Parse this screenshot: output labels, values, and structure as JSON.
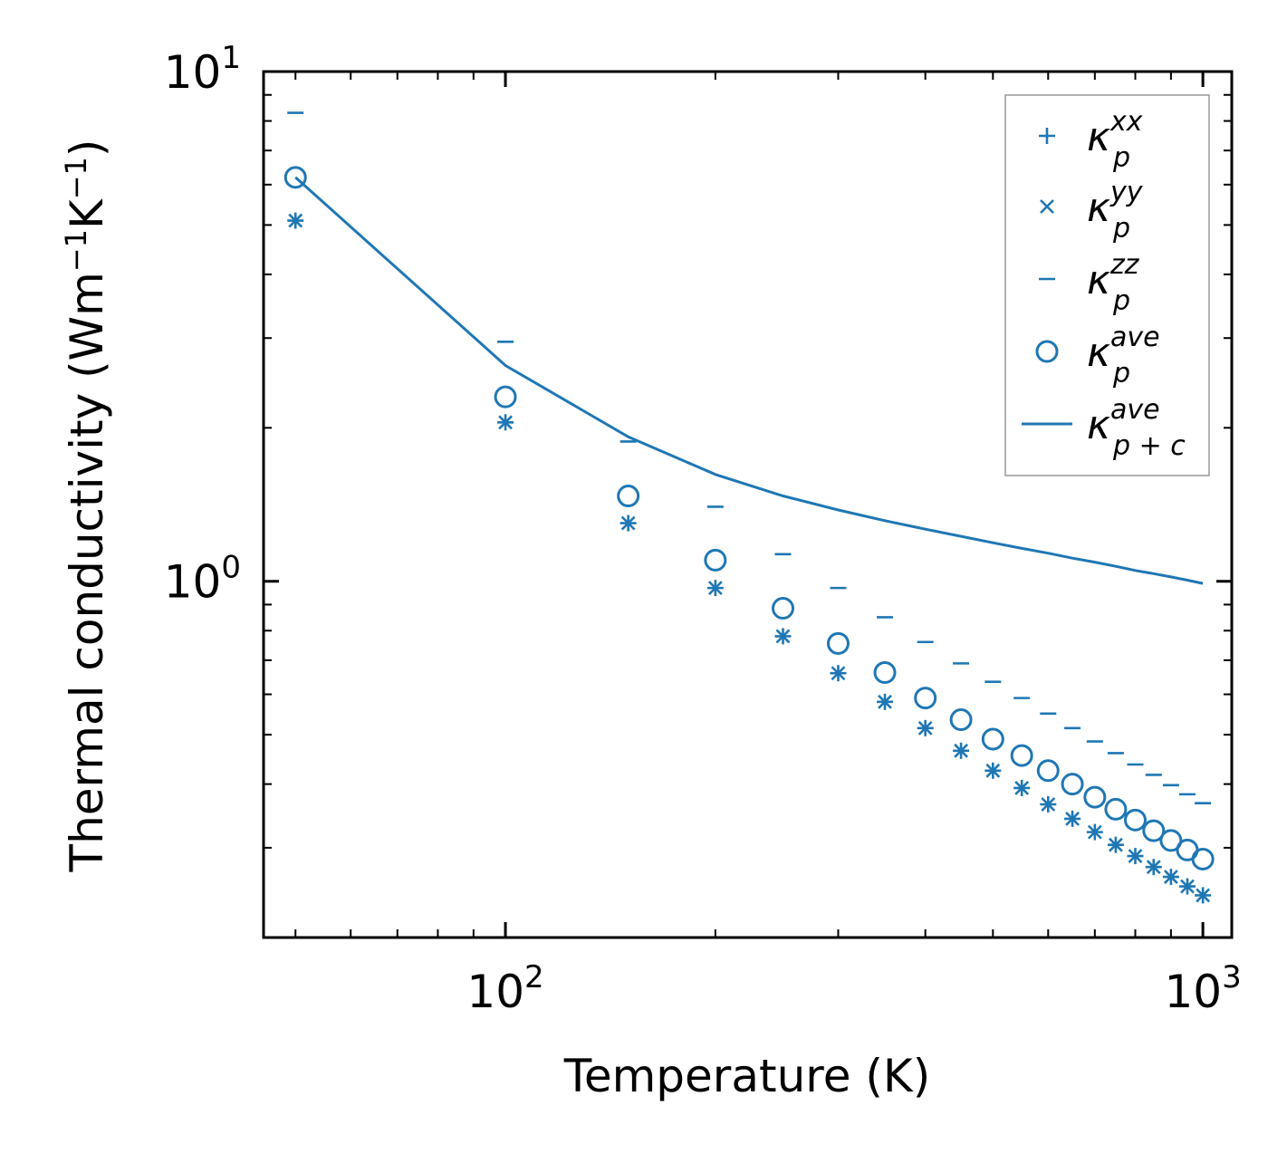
{
  "chart_data": {
    "type": "scatter",
    "xscale": "log",
    "yscale": "log",
    "xlim": [
      45,
      1100
    ],
    "ylim": [
      0.2,
      10
    ],
    "xlabel": "Temperature (K)",
    "ylabel": {
      "base": "Thermal conductivity (Wm",
      "exp1": "−1",
      "mid": "K",
      "exp2": "−1",
      "end": ")"
    },
    "x_ticks": [
      {
        "value": 100,
        "base": "10",
        "exp": "2"
      },
      {
        "value": 1000,
        "base": "10",
        "exp": "3"
      }
    ],
    "y_ticks": [
      {
        "value": 1,
        "base": "10",
        "exp": "0"
      },
      {
        "value": 10,
        "base": "10",
        "exp": "1"
      }
    ],
    "legend_position": "top-right",
    "color": "#1f77b4",
    "x": [
      50,
      100,
      150,
      200,
      250,
      300,
      350,
      400,
      450,
      500,
      550,
      600,
      650,
      700,
      750,
      800,
      850,
      900,
      950,
      1000
    ],
    "series": [
      {
        "name": "kp_xx",
        "label": {
          "base": "κ",
          "sub": "p",
          "sup": "xx"
        },
        "marker": "plus",
        "values": [
          5.1,
          2.05,
          1.3,
          0.97,
          0.78,
          0.66,
          0.58,
          0.515,
          0.465,
          0.425,
          0.393,
          0.365,
          0.342,
          0.322,
          0.304,
          0.289,
          0.275,
          0.263,
          0.252,
          0.242
        ]
      },
      {
        "name": "kp_yy",
        "label": {
          "base": "κ",
          "sub": "p",
          "sup": "yy"
        },
        "marker": "x",
        "values": [
          5.1,
          2.05,
          1.3,
          0.97,
          0.78,
          0.66,
          0.58,
          0.515,
          0.465,
          0.425,
          0.393,
          0.365,
          0.342,
          0.322,
          0.304,
          0.289,
          0.275,
          0.263,
          0.252,
          0.242
        ]
      },
      {
        "name": "kp_zz",
        "label": {
          "base": "κ",
          "sub": "p",
          "sup": "zz"
        },
        "marker": "hline",
        "values": [
          8.3,
          2.95,
          1.88,
          1.4,
          1.13,
          0.97,
          0.85,
          0.76,
          0.69,
          0.635,
          0.59,
          0.55,
          0.515,
          0.485,
          0.46,
          0.437,
          0.417,
          0.398,
          0.382,
          0.367
        ]
      },
      {
        "name": "kp_ave",
        "label": {
          "base": "κ",
          "sub": "p",
          "sup": "ave"
        },
        "marker": "circle",
        "values": [
          6.2,
          2.3,
          1.47,
          1.1,
          0.885,
          0.755,
          0.662,
          0.59,
          0.535,
          0.49,
          0.455,
          0.425,
          0.4,
          0.377,
          0.357,
          0.34,
          0.324,
          0.31,
          0.297,
          0.285
        ]
      },
      {
        "name": "kpc_ave",
        "label": {
          "base": "κ",
          "sub": "p + c",
          "sup": "ave"
        },
        "marker": "line",
        "values": [
          6.2,
          2.65,
          1.92,
          1.62,
          1.47,
          1.38,
          1.315,
          1.265,
          1.225,
          1.19,
          1.16,
          1.135,
          1.11,
          1.09,
          1.07,
          1.05,
          1.035,
          1.02,
          1.005,
          0.99
        ]
      }
    ]
  }
}
